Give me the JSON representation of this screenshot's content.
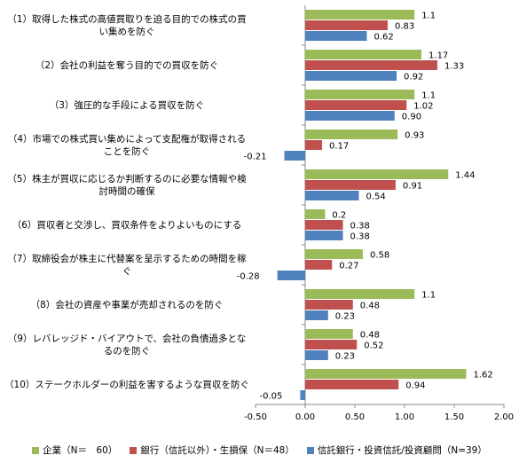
{
  "chart_data": {
    "type": "bar",
    "orientation": "horizontal",
    "categories": [
      "（1）取得した株式の高値買取りを迫る目的での株式の買い集めを防ぐ",
      "（2）会社の利益を奪う目的での買収を防ぐ",
      "（3）強圧的な手段による買収を防ぐ",
      "（4）市場での株式買い集めによって支配権が取得されることを防ぐ",
      "（5）株主が買収に応じるか判断するのに必要な情報や検討時間の確保",
      "（6）買収者と交渉し、買収条件をよりよいものにする",
      "（7）取締役会が株主に代替案を呈示するための時間を稼ぐ",
      "（8）会社の資産や事業が売却されるのを防ぐ",
      "（9）レバレッジド・バイアウトで、会社の負債過多となるのを防ぐ",
      "（10）ステークホルダーの利益を害するような買収を防ぐ"
    ],
    "series": [
      {
        "name": "企業（N＝　60）",
        "color": "#9bbb59",
        "values": [
          1.1,
          1.17,
          1.1,
          0.93,
          1.44,
          0.2,
          0.58,
          1.1,
          0.48,
          1.62
        ]
      },
      {
        "name": "銀行（信託以外）・生損保（N＝48）",
        "color": "#c0504d",
        "values": [
          0.83,
          1.33,
          1.02,
          0.17,
          0.91,
          0.38,
          0.27,
          0.48,
          0.52,
          0.94
        ]
      },
      {
        "name": "信託銀行・投資信託/投資顧問（N=39）",
        "color": "#4f81bd",
        "values": [
          0.62,
          0.92,
          0.9,
          -0.21,
          0.54,
          0.38,
          -0.28,
          0.23,
          0.23,
          -0.05
        ],
        "value_labels": [
          "0.62",
          "0.92",
          "0.90",
          "-0.21",
          "0.54",
          "0.38",
          "-0.28",
          "0.23",
          "0.23",
          "-0.05"
        ]
      }
    ],
    "xlim": [
      -0.5,
      2.0
    ],
    "xticks": [
      {
        "value": -0.5,
        "label": "-0.50"
      },
      {
        "value": 0,
        "label": "0.00"
      },
      {
        "value": 0.5,
        "label": "0.50"
      },
      {
        "value": 1,
        "label": "1.00"
      },
      {
        "value": 1.5,
        "label": "1.50"
      },
      {
        "value": 2,
        "label": "2.00"
      }
    ],
    "grid": false
  }
}
